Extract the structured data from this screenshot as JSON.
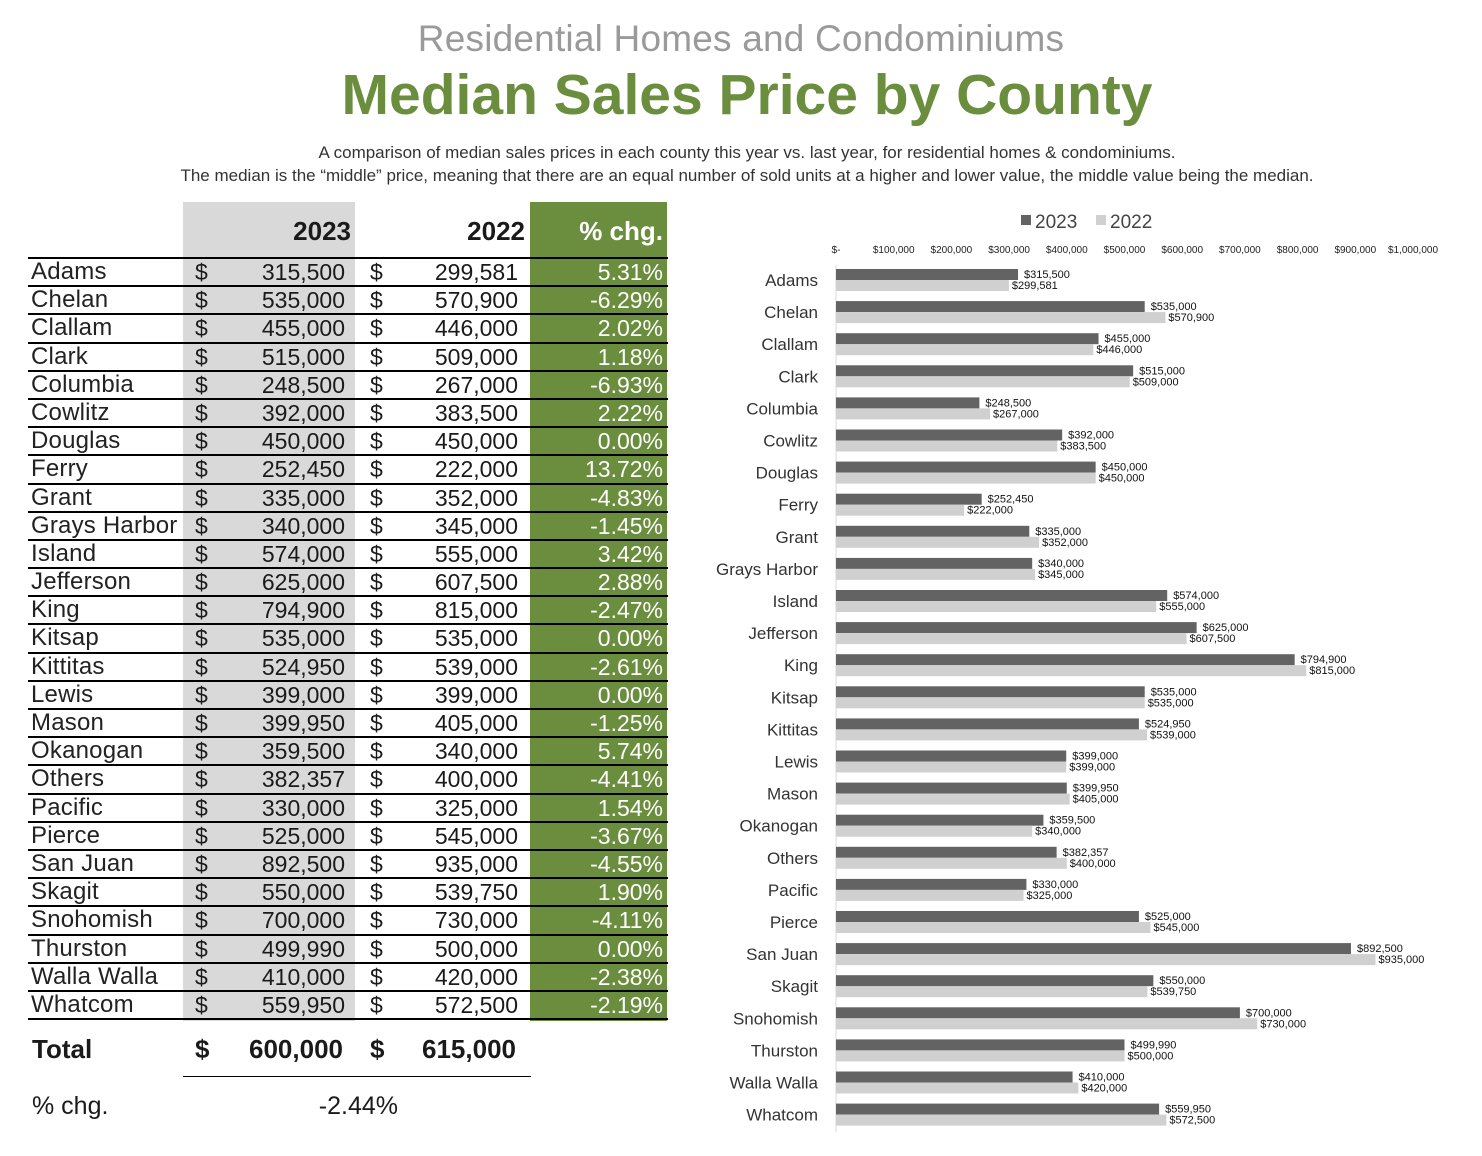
{
  "header": {
    "supertitle": "Residential Homes and Condominiums",
    "title": "Median Sales Price by County",
    "description_line1": "A comparison of median sales prices in each county this year vs. last year, for residential homes & condominiums.",
    "description_line2": "The median is the “middle” price, meaning that there are an equal number of sold units at a higher and lower value, the middle value being the median."
  },
  "table": {
    "columns": {
      "year1": "2023",
      "year2": "2022",
      "pct": "% chg."
    },
    "currency_symbol": "$",
    "rows": [
      {
        "county": "Adams",
        "v2023": "315,500",
        "v2022": "299,581",
        "pct": "5.31%"
      },
      {
        "county": "Chelan",
        "v2023": "535,000",
        "v2022": "570,900",
        "pct": "-6.29%"
      },
      {
        "county": "Clallam",
        "v2023": "455,000",
        "v2022": "446,000",
        "pct": "2.02%"
      },
      {
        "county": "Clark",
        "v2023": "515,000",
        "v2022": "509,000",
        "pct": "1.18%"
      },
      {
        "county": "Columbia",
        "v2023": "248,500",
        "v2022": "267,000",
        "pct": "-6.93%"
      },
      {
        "county": "Cowlitz",
        "v2023": "392,000",
        "v2022": "383,500",
        "pct": "2.22%"
      },
      {
        "county": "Douglas",
        "v2023": "450,000",
        "v2022": "450,000",
        "pct": "0.00%"
      },
      {
        "county": "Ferry",
        "v2023": "252,450",
        "v2022": "222,000",
        "pct": "13.72%"
      },
      {
        "county": "Grant",
        "v2023": "335,000",
        "v2022": "352,000",
        "pct": "-4.83%"
      },
      {
        "county": "Grays Harbor",
        "v2023": "340,000",
        "v2022": "345,000",
        "pct": "-1.45%"
      },
      {
        "county": "Island",
        "v2023": "574,000",
        "v2022": "555,000",
        "pct": "3.42%"
      },
      {
        "county": "Jefferson",
        "v2023": "625,000",
        "v2022": "607,500",
        "pct": "2.88%"
      },
      {
        "county": "King",
        "v2023": "794,900",
        "v2022": "815,000",
        "pct": "-2.47%"
      },
      {
        "county": "Kitsap",
        "v2023": "535,000",
        "v2022": "535,000",
        "pct": "0.00%"
      },
      {
        "county": "Kittitas",
        "v2023": "524,950",
        "v2022": "539,000",
        "pct": "-2.61%"
      },
      {
        "county": "Lewis",
        "v2023": "399,000",
        "v2022": "399,000",
        "pct": "0.00%"
      },
      {
        "county": "Mason",
        "v2023": "399,950",
        "v2022": "405,000",
        "pct": "-1.25%"
      },
      {
        "county": "Okanogan",
        "v2023": "359,500",
        "v2022": "340,000",
        "pct": "5.74%"
      },
      {
        "county": "Others",
        "v2023": "382,357",
        "v2022": "400,000",
        "pct": "-4.41%"
      },
      {
        "county": "Pacific",
        "v2023": "330,000",
        "v2022": "325,000",
        "pct": "1.54%"
      },
      {
        "county": "Pierce",
        "v2023": "525,000",
        "v2022": "545,000",
        "pct": "-3.67%"
      },
      {
        "county": "San Juan",
        "v2023": "892,500",
        "v2022": "935,000",
        "pct": "-4.55%"
      },
      {
        "county": "Skagit",
        "v2023": "550,000",
        "v2022": "539,750",
        "pct": "1.90%"
      },
      {
        "county": "Snohomish",
        "v2023": "700,000",
        "v2022": "730,000",
        "pct": "-4.11%"
      },
      {
        "county": "Thurston",
        "v2023": "499,990",
        "v2022": "500,000",
        "pct": "0.00%"
      },
      {
        "county": "Walla Walla",
        "v2023": "410,000",
        "v2022": "420,000",
        "pct": "-2.38%"
      },
      {
        "county": "Whatcom",
        "v2023": "559,950",
        "v2022": "572,500",
        "pct": "-2.19%"
      }
    ],
    "total": {
      "label": "Total",
      "v2023": "600,000",
      "v2022": "615,000"
    },
    "total_pct": {
      "label": "% chg.",
      "value": "-2.44%"
    }
  },
  "chart_data": {
    "type": "bar",
    "orientation": "horizontal",
    "categories": [
      "Adams",
      "Chelan",
      "Clallam",
      "Clark",
      "Columbia",
      "Cowlitz",
      "Douglas",
      "Ferry",
      "Grant",
      "Grays Harbor",
      "Island",
      "Jefferson",
      "King",
      "Kitsap",
      "Kittitas",
      "Lewis",
      "Mason",
      "Okanogan",
      "Others",
      "Pacific",
      "Pierce",
      "San Juan",
      "Skagit",
      "Snohomish",
      "Thurston",
      "Walla Walla",
      "Whatcom"
    ],
    "series": [
      {
        "name": "2023",
        "color": "#636363",
        "values": [
          315500,
          535000,
          455000,
          515000,
          248500,
          392000,
          450000,
          252450,
          335000,
          340000,
          574000,
          625000,
          794900,
          535000,
          524950,
          399000,
          399950,
          359500,
          382357,
          330000,
          525000,
          892500,
          550000,
          700000,
          499990,
          410000,
          559950
        ],
        "labels": [
          "$315,500",
          "$535,000",
          "$455,000",
          "$515,000",
          "$248,500",
          "$392,000",
          "$450,000",
          "$252,450",
          "$335,000",
          "$340,000",
          "$574,000",
          "$625,000",
          "$794,900",
          "$535,000",
          "$524,950",
          "$399,000",
          "$399,950",
          "$359,500",
          "$382,357",
          "$330,000",
          "$525,000",
          "$892,500",
          "$550,000",
          "$700,000",
          "$499,990",
          "$410,000",
          "$559,950"
        ]
      },
      {
        "name": "2022",
        "color": "#d0d0d0",
        "values": [
          299581,
          570900,
          446000,
          509000,
          267000,
          383500,
          450000,
          222000,
          352000,
          345000,
          555000,
          607500,
          815000,
          535000,
          539000,
          399000,
          405000,
          340000,
          400000,
          325000,
          545000,
          935000,
          539750,
          730000,
          500000,
          420000,
          572500
        ],
        "labels": [
          "$299,581",
          "$570,900",
          "$446,000",
          "$509,000",
          "$267,000",
          "$383,500",
          "$450,000",
          "$222,000",
          "$352,000",
          "$345,000",
          "$555,000",
          "$607,500",
          "$815,000",
          "$535,000",
          "$539,000",
          "$399,000",
          "$405,000",
          "$340,000",
          "$400,000",
          "$325,000",
          "$545,000",
          "$935,000",
          "$539,750",
          "$730,000",
          "$500,000",
          "$420,000",
          "$572,500"
        ]
      }
    ],
    "xlim": [
      0,
      1000000
    ],
    "xticks": [
      0,
      100000,
      200000,
      300000,
      400000,
      500000,
      600000,
      700000,
      800000,
      900000,
      1000000
    ],
    "xtick_labels": [
      "$-",
      "$100,000",
      "$200,000",
      "$300,000",
      "$400,000",
      "$500,000",
      "$600,000",
      "$700,000",
      "$800,000",
      "$900,000",
      "$1,000,000"
    ],
    "legend_position": "top-center",
    "title": "",
    "xlabel": "",
    "ylabel": ""
  }
}
